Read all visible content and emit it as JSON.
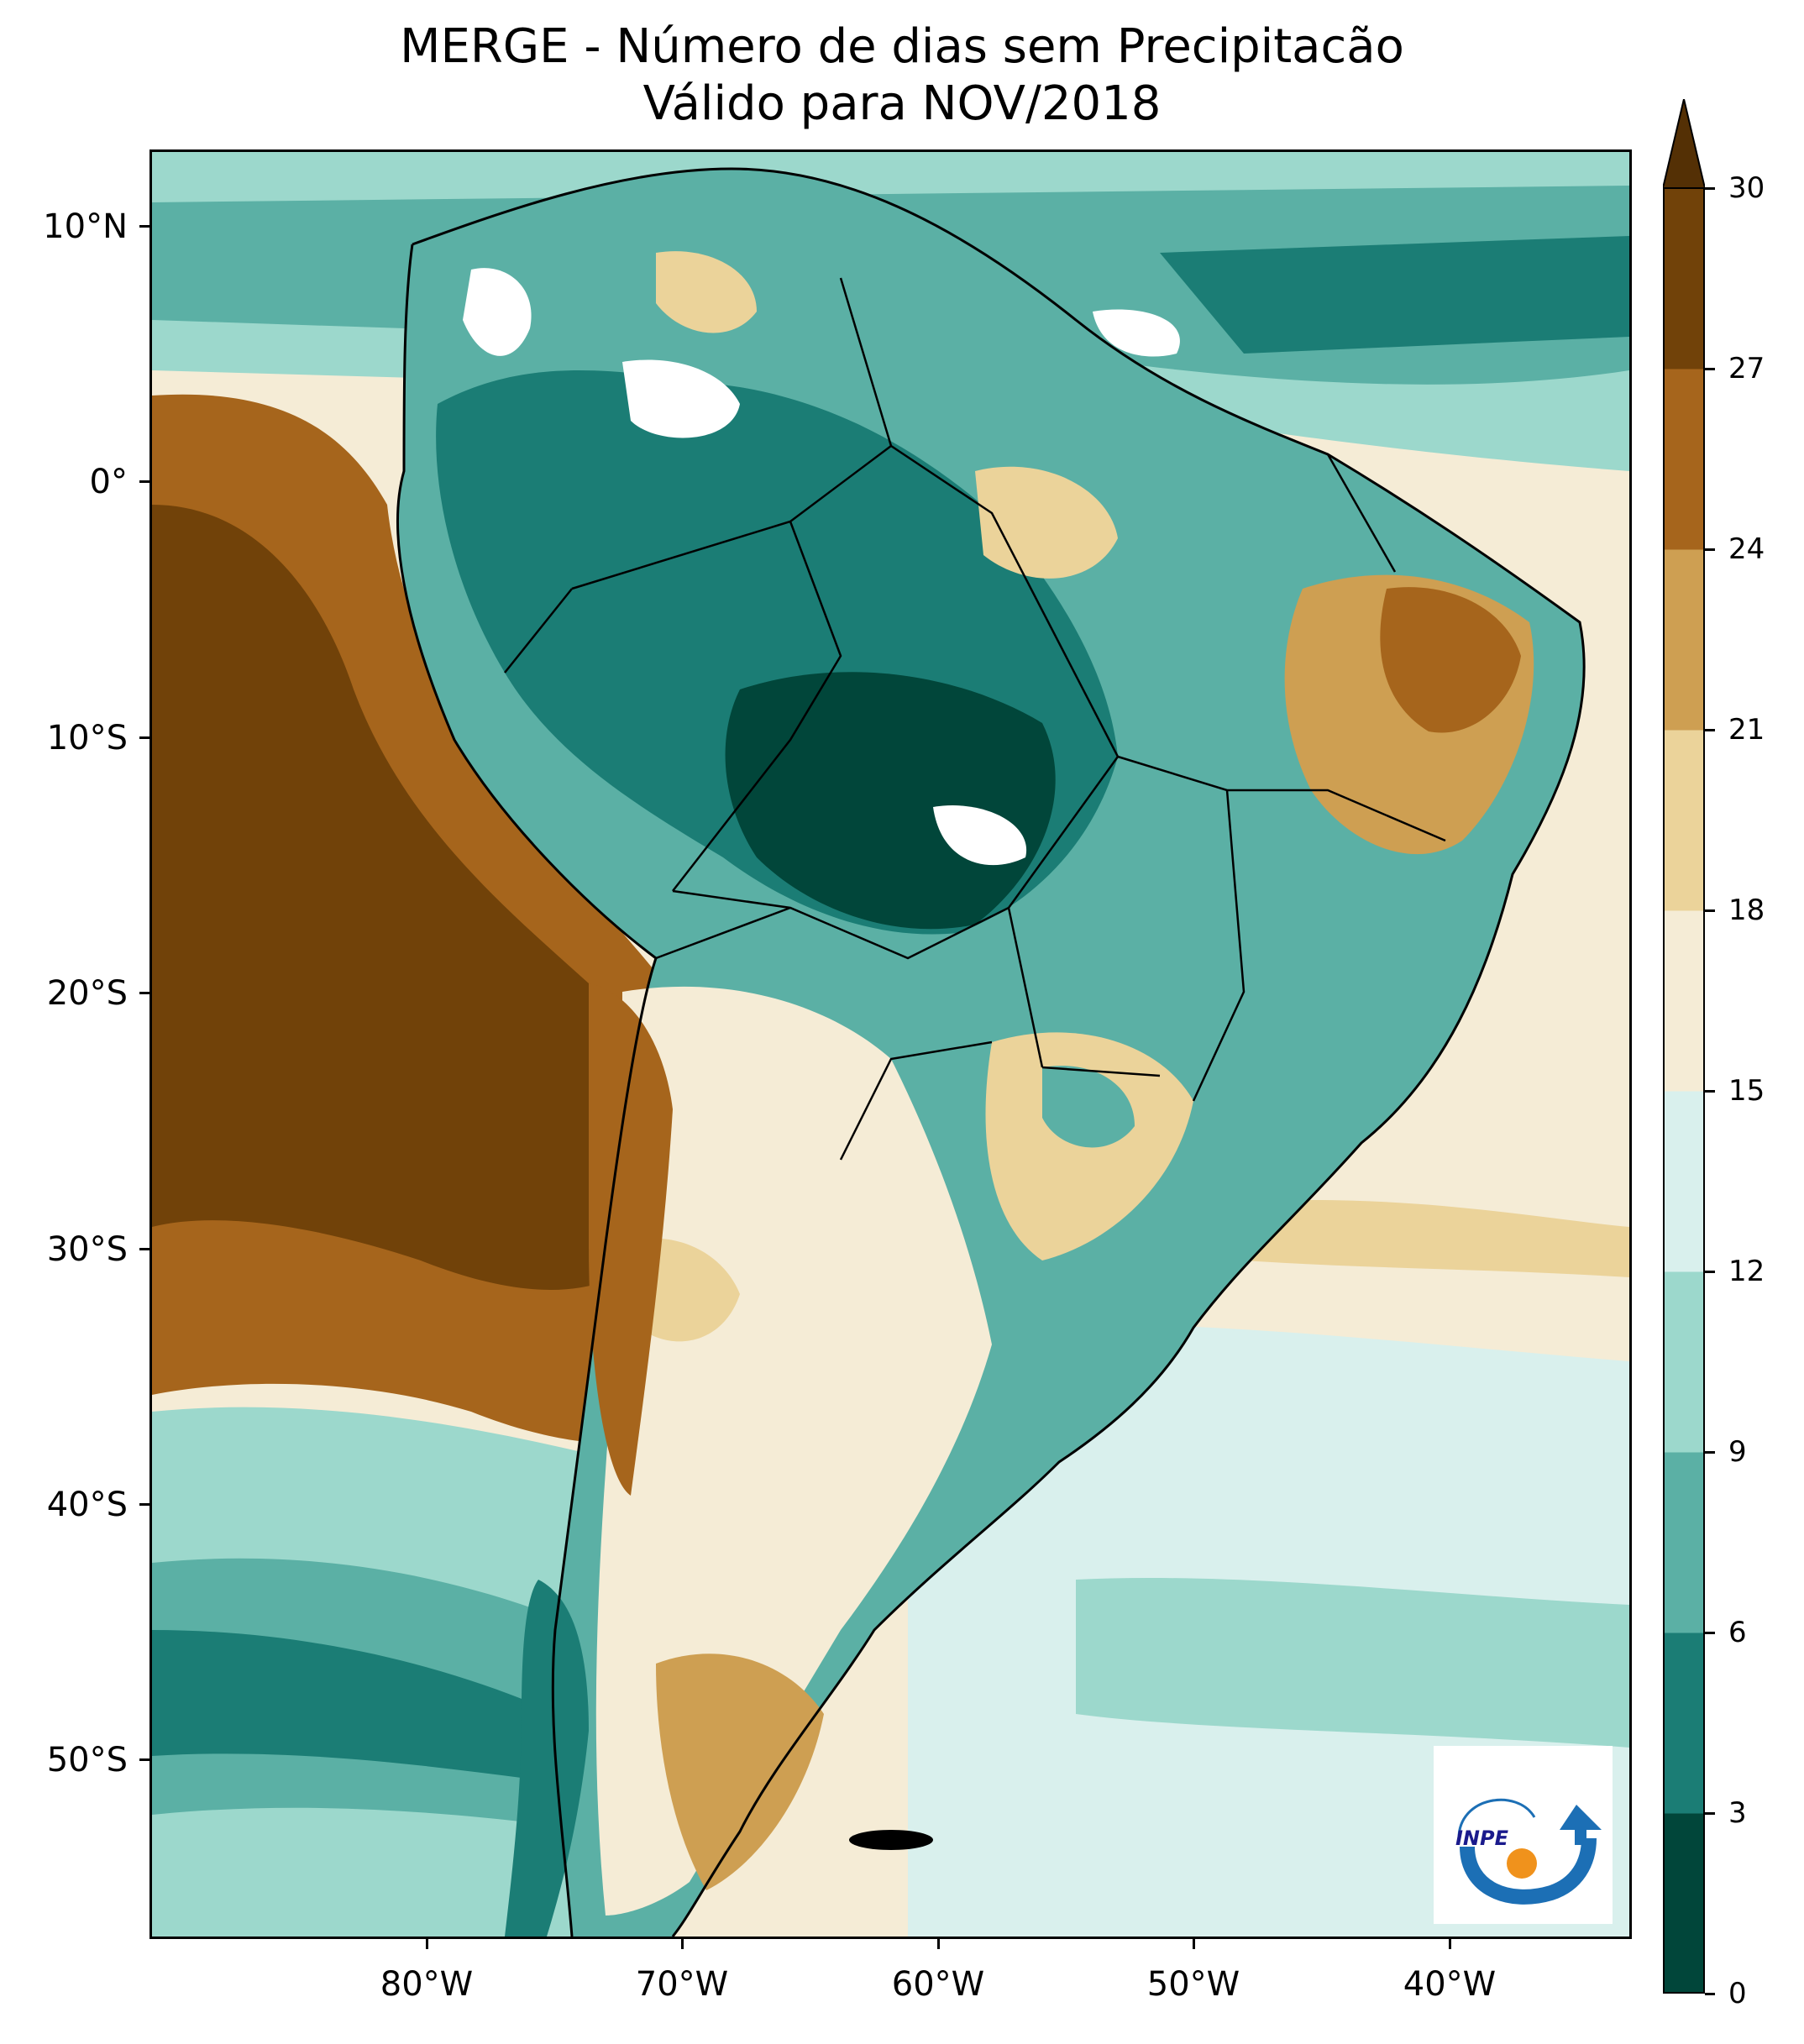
{
  "title": {
    "line1": "MERGE - Número de dias sem Precipitacão",
    "line2": "Válido para NOV/2018"
  },
  "map": {
    "region": "South America",
    "variable": "Number of days without precipitation"
  },
  "lat_labels": [
    "10°N",
    "0°",
    "10°S",
    "20°S",
    "30°S",
    "40°S",
    "50°S"
  ],
  "lon_labels": [
    "80°W",
    "70°W",
    "60°W",
    "50°W",
    "40°W"
  ],
  "colorbar": {
    "ticks": [
      "0",
      "3",
      "6",
      "9",
      "12",
      "15",
      "18",
      "21",
      "24",
      "27",
      "30"
    ],
    "colors": [
      "#01463a",
      "#1b7d75",
      "#5bb0a5",
      "#9cd8cc",
      "#d9f0ed",
      "#f5ecd6",
      "#ebd39a",
      "#ce9f52",
      "#a6651c",
      "#714209"
    ],
    "extend_color": "#543005"
  },
  "logo": {
    "text": "INPE"
  },
  "palette": {
    "ocean_far": "#f5ecd6",
    "dry_pacific": "#714209",
    "dry_mid": "#a6651c",
    "tan": "#ce9f52",
    "light_tan": "#ebd39a",
    "pale": "#d9f0ed",
    "light_teal": "#9cd8cc",
    "teal": "#5bb0a5",
    "dark_teal": "#1b7d75",
    "deepest": "#01463a"
  }
}
